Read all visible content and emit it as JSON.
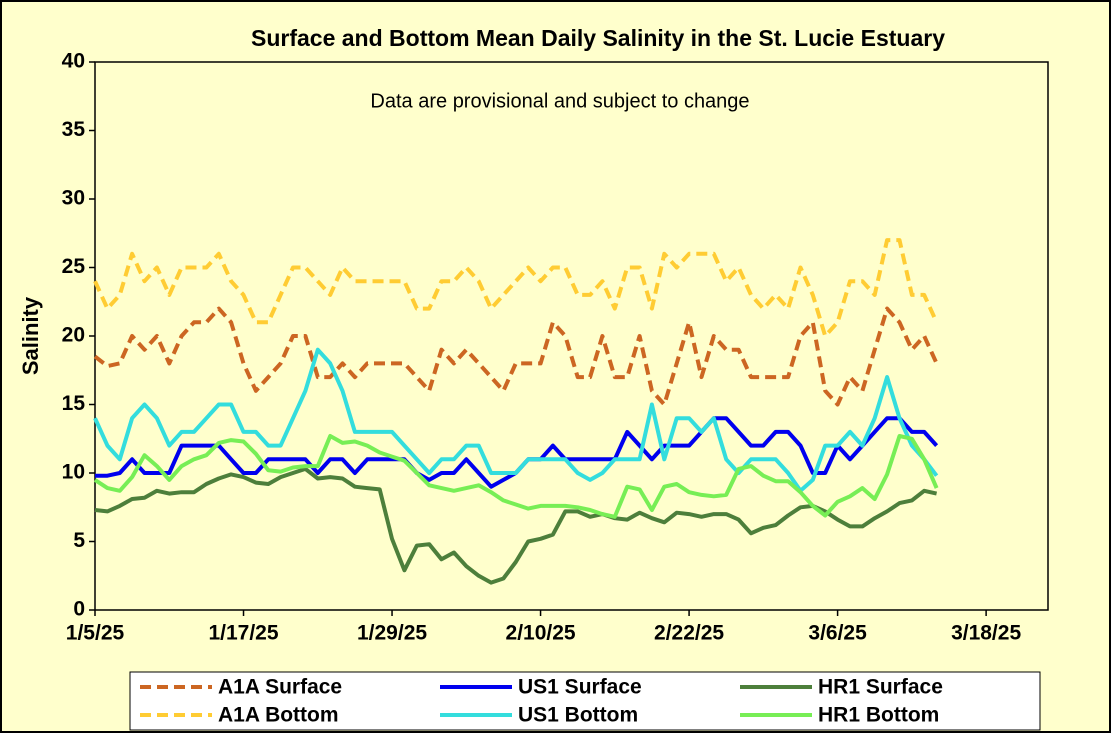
{
  "chart_data": {
    "type": "line",
    "title": "Surface and Bottom Mean Daily Salinity in the St. Lucie Estuary",
    "annotation": "Data are provisional and subject to change",
    "y_label": "Salinity",
    "x": [
      "1/5/25",
      "1/6/25",
      "1/7/25",
      "1/8/25",
      "1/9/25",
      "1/10/25",
      "1/11/25",
      "1/12/25",
      "1/13/25",
      "1/14/25",
      "1/15/25",
      "1/16/25",
      "1/17/25",
      "1/18/25",
      "1/19/25",
      "1/20/25",
      "1/21/25",
      "1/22/25",
      "1/23/25",
      "1/24/25",
      "1/25/25",
      "1/26/25",
      "1/27/25",
      "1/28/25",
      "1/29/25",
      "1/30/25",
      "1/31/25",
      "2/1/25",
      "2/2/25",
      "2/3/25",
      "2/4/25",
      "2/5/25",
      "2/6/25",
      "2/7/25",
      "2/8/25",
      "2/9/25",
      "2/10/25",
      "2/11/25",
      "2/12/25",
      "2/13/25",
      "2/14/25",
      "2/15/25",
      "2/16/25",
      "2/17/25",
      "2/18/25",
      "2/19/25",
      "2/20/25",
      "2/21/25",
      "2/22/25",
      "2/23/25",
      "2/24/25",
      "2/25/25",
      "2/26/25",
      "2/27/25",
      "2/28/25",
      "3/1/25",
      "3/2/25",
      "3/3/25",
      "3/4/25",
      "3/5/25",
      "3/6/25",
      "3/7/25",
      "3/8/25",
      "3/9/25",
      "3/10/25",
      "3/11/25",
      "3/12/25",
      "3/13/25",
      "3/14/25"
    ],
    "xlim": [
      "1/5/25",
      "3/23/25"
    ],
    "xticks": [
      "1/5/25",
      "1/17/25",
      "1/29/25",
      "2/10/25",
      "2/22/25",
      "3/6/25",
      "3/18/25"
    ],
    "ylim": [
      0,
      40
    ],
    "yticks": [
      0,
      5,
      10,
      15,
      20,
      25,
      30,
      35,
      40
    ],
    "background": "#ffffcc",
    "series": [
      {
        "name": "A1A Surface",
        "color": "#cc6622",
        "style": "dashed",
        "values": [
          18.5,
          17.8,
          18,
          20,
          19,
          20,
          18,
          20,
          21,
          21,
          22,
          21,
          18,
          16,
          17,
          18,
          20,
          20,
          17,
          17,
          18,
          17,
          18,
          18,
          18,
          18,
          17,
          16,
          19,
          18,
          19,
          18,
          17,
          16,
          18,
          18,
          18,
          21,
          20,
          17,
          17,
          20,
          17,
          17,
          20,
          16,
          15,
          18,
          21,
          17,
          20,
          19,
          19,
          17,
          17,
          17,
          17,
          20,
          21,
          16,
          15,
          17,
          16,
          19,
          22,
          21,
          19,
          20,
          18
        ]
      },
      {
        "name": "US1 Surface",
        "color": "#0000ee",
        "style": "solid",
        "values": [
          9.8,
          9.8,
          10,
          11,
          10,
          10,
          10,
          12,
          12,
          12,
          12,
          11,
          10,
          10,
          11,
          11,
          11,
          11,
          10,
          11,
          11,
          10,
          11,
          11,
          11,
          11,
          10,
          9.5,
          10,
          10,
          11,
          10,
          9,
          9.5,
          10,
          11,
          11,
          12,
          11,
          11,
          11,
          11,
          11,
          13,
          12,
          11,
          12,
          12,
          12,
          13,
          14,
          14,
          13,
          12,
          12,
          13,
          13,
          12,
          10,
          10,
          12,
          11,
          12,
          13,
          14,
          14,
          13,
          13,
          12
        ]
      },
      {
        "name": "HR1 Surface",
        "color": "#4d7f3b",
        "style": "solid",
        "values": [
          7.3,
          7.2,
          7.6,
          8.1,
          8.2,
          8.7,
          8.5,
          8.6,
          8.6,
          9.2,
          9.6,
          9.9,
          9.7,
          9.3,
          9.2,
          9.7,
          10,
          10.3,
          9.6,
          9.7,
          9.6,
          9.0,
          8.9,
          8.8,
          5.2,
          2.9,
          4.7,
          4.8,
          3.7,
          4.2,
          3.2,
          2.5,
          2.0,
          2.3,
          3.5,
          5.0,
          5.2,
          5.5,
          7.2,
          7.2,
          6.8,
          7.0,
          6.7,
          6.6,
          7.1,
          6.7,
          6.4,
          7.1,
          7.0,
          6.8,
          7.0,
          7.0,
          6.6,
          5.6,
          6.0,
          6.2,
          6.9,
          7.5,
          7.6,
          7.2,
          6.6,
          6.1,
          6.1,
          6.7,
          7.2,
          7.8,
          8.0,
          8.7,
          8.5
        ]
      },
      {
        "name": "A1A Bottom",
        "color": "#ffcc33",
        "style": "dashed",
        "values": [
          24,
          22,
          23,
          26,
          24,
          25,
          23,
          25,
          25,
          25,
          26,
          24,
          23,
          21,
          21,
          23,
          25,
          25,
          24,
          23,
          25,
          24,
          24,
          24,
          24,
          24,
          22,
          22,
          24,
          24,
          25,
          24,
          22,
          23,
          24,
          25,
          24,
          25,
          25,
          23,
          23,
          24,
          22,
          25,
          25,
          22,
          26,
          25,
          26,
          26,
          26,
          24,
          25,
          23,
          22,
          23,
          22,
          25,
          23,
          20,
          21,
          24,
          24,
          23,
          27,
          27,
          23,
          23,
          21
        ]
      },
      {
        "name": "US1 Bottom",
        "color": "#33dddd",
        "style": "solid",
        "values": [
          14,
          12,
          11,
          14,
          15,
          14,
          12,
          13,
          13,
          14,
          15,
          15,
          13,
          13,
          12,
          12,
          14,
          16,
          19,
          18,
          16,
          13,
          13,
          13,
          13,
          12,
          11,
          10,
          11,
          11,
          12,
          12,
          10,
          10,
          10,
          11,
          11,
          11,
          11,
          10,
          9.5,
          10,
          11,
          11,
          11,
          15,
          11,
          14,
          14,
          13,
          14,
          11,
          10,
          11,
          11,
          11,
          10,
          8.7,
          9.5,
          12,
          12,
          13,
          12,
          14,
          17,
          14,
          12,
          11,
          9.8
        ]
      },
      {
        "name": "HR1 Bottom",
        "color": "#77ee55",
        "style": "solid",
        "values": [
          9.5,
          8.9,
          8.7,
          9.7,
          11.3,
          10.5,
          9.5,
          10.5,
          11.0,
          11.3,
          12.2,
          12.4,
          12.3,
          11.4,
          10.2,
          10.1,
          10.4,
          10.5,
          10.5,
          12.7,
          12.2,
          12.3,
          12.0,
          11.5,
          11.2,
          10.9,
          10.0,
          9.1,
          8.9,
          8.7,
          8.9,
          9.1,
          8.6,
          8.0,
          7.7,
          7.4,
          7.6,
          7.6,
          7.6,
          7.5,
          7.3,
          7.0,
          6.8,
          9.0,
          8.8,
          7.3,
          9.0,
          9.2,
          8.6,
          8.4,
          8.3,
          8.4,
          10.3,
          10.5,
          9.8,
          9.4,
          9.4,
          8.6,
          7.6,
          6.9,
          7.9,
          8.3,
          8.9,
          8.1,
          9.9,
          12.7,
          12.5,
          11.0,
          8.9
        ]
      }
    ]
  }
}
